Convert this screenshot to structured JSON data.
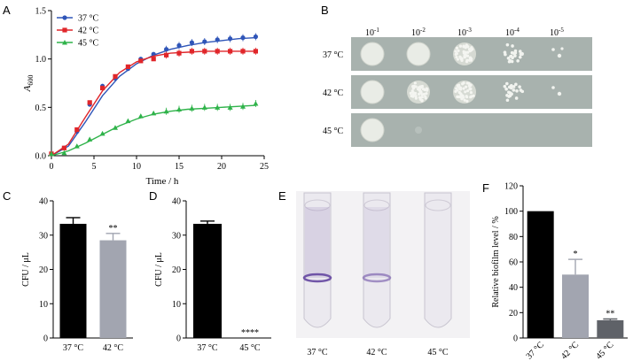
{
  "panels": {
    "a": "A",
    "b": "B",
    "c": "C",
    "d": "D",
    "e": "E",
    "f": "F"
  },
  "chart_data": [
    {
      "id": "A",
      "type": "line",
      "xlabel": "Time / h",
      "ylabel": "A600",
      "ylabel_main": "A",
      "ylabel_sub": "600",
      "xlim": [
        0,
        25
      ],
      "ylim": [
        0,
        1.5
      ],
      "xticks": [
        0,
        5,
        10,
        15,
        20,
        25
      ],
      "yticks": [
        0.0,
        0.5,
        1.0,
        1.5
      ],
      "ytick_labels": [
        "0.0",
        "0.5",
        "1.0",
        "1.5"
      ],
      "legend_position": "top-left",
      "series": [
        {
          "name": "37 °C",
          "color": "#2f55b8",
          "marker": "circle",
          "x": [
            0,
            1.5,
            3,
            4.5,
            6,
            7.5,
            9,
            10.5,
            12,
            13.5,
            15,
            16.5,
            18,
            19.5,
            21,
            22.5,
            24
          ],
          "y": [
            0.02,
            0.08,
            0.25,
            0.53,
            0.72,
            0.8,
            0.9,
            1.0,
            1.05,
            1.1,
            1.14,
            1.17,
            1.18,
            1.2,
            1.21,
            1.22,
            1.23
          ],
          "fit": [
            [
              0,
              0.0
            ],
            [
              2,
              0.1
            ],
            [
              4,
              0.35
            ],
            [
              6,
              0.62
            ],
            [
              8,
              0.82
            ],
            [
              10,
              0.95
            ],
            [
              12,
              1.04
            ],
            [
              14,
              1.1
            ],
            [
              16,
              1.14
            ],
            [
              18,
              1.17
            ],
            [
              20,
              1.19
            ],
            [
              22,
              1.21
            ],
            [
              24,
              1.22
            ]
          ]
        },
        {
          "name": "42 °C",
          "color": "#e0262a",
          "marker": "square",
          "x": [
            0,
            1.5,
            3,
            4.5,
            6,
            7.5,
            9,
            10.5,
            12,
            13.5,
            15,
            16.5,
            18,
            19.5,
            21,
            22.5,
            24
          ],
          "y": [
            0.02,
            0.08,
            0.27,
            0.55,
            0.7,
            0.82,
            0.92,
            0.98,
            1.0,
            1.04,
            1.06,
            1.08,
            1.08,
            1.08,
            1.08,
            1.08,
            1.08
          ],
          "fit": [
            [
              0,
              0.0
            ],
            [
              2,
              0.12
            ],
            [
              4,
              0.4
            ],
            [
              6,
              0.67
            ],
            [
              8,
              0.86
            ],
            [
              10,
              0.97
            ],
            [
              12,
              1.03
            ],
            [
              14,
              1.06
            ],
            [
              16,
              1.07
            ],
            [
              18,
              1.08
            ],
            [
              20,
              1.08
            ],
            [
              22,
              1.08
            ],
            [
              24,
              1.08
            ]
          ]
        },
        {
          "name": "45 °C",
          "color": "#2fb34a",
          "marker": "triangle",
          "x": [
            0,
            1.5,
            3,
            4.5,
            6,
            7.5,
            9,
            10.5,
            12,
            13.5,
            15,
            16.5,
            18,
            19.5,
            21,
            22.5,
            24
          ],
          "y": [
            0.02,
            0.03,
            0.1,
            0.17,
            0.23,
            0.29,
            0.36,
            0.41,
            0.44,
            0.46,
            0.48,
            0.49,
            0.5,
            0.5,
            0.5,
            0.51,
            0.54
          ],
          "fit": [
            [
              0,
              0.0
            ],
            [
              2,
              0.05
            ],
            [
              4,
              0.13
            ],
            [
              6,
              0.22
            ],
            [
              8,
              0.31
            ],
            [
              10,
              0.38
            ],
            [
              12,
              0.43
            ],
            [
              14,
              0.46
            ],
            [
              16,
              0.48
            ],
            [
              18,
              0.49
            ],
            [
              20,
              0.5
            ],
            [
              22,
              0.51
            ],
            [
              24,
              0.52
            ]
          ]
        }
      ]
    },
    {
      "id": "C",
      "type": "bar",
      "ylabel": "CFU / μL",
      "ylim": [
        0,
        40
      ],
      "yticks": [
        0,
        10,
        20,
        30,
        40
      ],
      "categories": [
        "37 °C",
        "42 °C"
      ],
      "values": [
        33.3,
        28.5
      ],
      "errors": [
        1.8,
        2.0
      ],
      "colors": [
        "#000000",
        "#a2a5b0"
      ],
      "annotations": [
        "",
        "**"
      ]
    },
    {
      "id": "D",
      "type": "bar",
      "ylabel": "CFU / μL",
      "ylim": [
        0,
        40
      ],
      "yticks": [
        0,
        10,
        20,
        30,
        40
      ],
      "categories": [
        "37 °C",
        "45 °C"
      ],
      "values": [
        33.3,
        0
      ],
      "errors": [
        0.8,
        0
      ],
      "colors": [
        "#000000",
        "#a2a5b0"
      ],
      "annotations": [
        "",
        "****"
      ]
    },
    {
      "id": "F",
      "type": "bar",
      "ylabel": "Relative biofilm level / %",
      "ylim": [
        0,
        120
      ],
      "yticks": [
        0,
        20,
        40,
        60,
        80,
        100,
        120
      ],
      "categories": [
        "37 °C",
        "42 °C",
        "45 °C"
      ],
      "values": [
        100,
        50,
        14
      ],
      "errors": [
        0,
        12,
        1
      ],
      "colors": [
        "#000000",
        "#a2a5b0",
        "#5f6268"
      ],
      "annotations": [
        "",
        "*",
        "**"
      ]
    }
  ],
  "spot_assay": {
    "dilutions_base": [
      "10",
      "10",
      "10",
      "10",
      "10"
    ],
    "dilutions_exp": [
      "-1",
      "-2",
      "-3",
      "-4",
      "-5"
    ],
    "rows": [
      {
        "label": "37 °C",
        "density": [
          1,
          1,
          0.8,
          0.35,
          0.06
        ]
      },
      {
        "label": "42 °C",
        "density": [
          1,
          0.8,
          0.65,
          0.3,
          0.04
        ]
      },
      {
        "label": "45 °C",
        "density": [
          0.9,
          0.03,
          0,
          0,
          0
        ]
      }
    ]
  },
  "tubes": {
    "labels": [
      "37 °C",
      "42 °C",
      "45 °C"
    ],
    "stain_intensity": [
      0.9,
      0.55,
      0.05
    ]
  }
}
